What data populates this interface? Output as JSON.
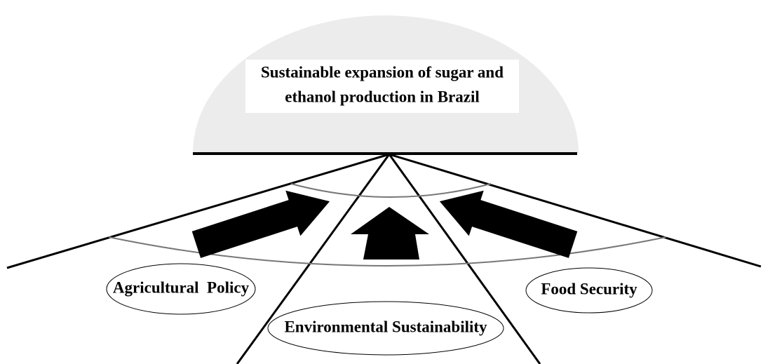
{
  "title": {
    "lines": [
      "Sustainable expansion of sugar and",
      "ethanol production in Brazil"
    ]
  },
  "nodes": [
    {
      "label": "Agricultural  Policy"
    },
    {
      "label": "Environmental Sustainability"
    },
    {
      "label": "Food Security"
    }
  ]
}
